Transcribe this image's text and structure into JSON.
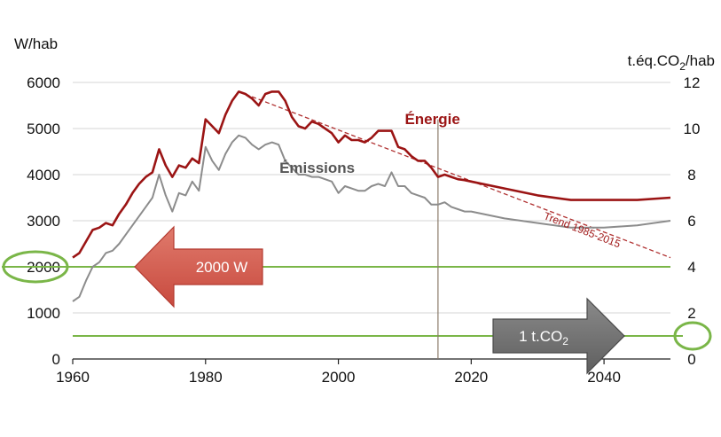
{
  "chart_data": {
    "type": "line",
    "left_axis": {
      "label": "W/hab",
      "ylim": [
        0,
        6000
      ],
      "ticks": [
        0,
        1000,
        2000,
        3000,
        4000,
        5000,
        6000
      ]
    },
    "right_axis": {
      "label": "t.éq.CO",
      "label_sub": "2",
      "label_suffix": "/hab",
      "ylim": [
        0,
        12
      ],
      "ticks": [
        0,
        2,
        4,
        6,
        8,
        10,
        12
      ]
    },
    "x_axis": {
      "xlim": [
        1960,
        2050
      ],
      "ticks": [
        1960,
        1980,
        2000,
        2020,
        2040
      ]
    },
    "grid": "horizontal",
    "series": [
      {
        "name": "Énergie",
        "axis": "left",
        "color": "#9b1414",
        "x": [
          1960,
          1961,
          1962,
          1963,
          1964,
          1965,
          1966,
          1967,
          1968,
          1969,
          1970,
          1971,
          1972,
          1973,
          1974,
          1975,
          1976,
          1977,
          1978,
          1979,
          1980,
          1981,
          1982,
          1983,
          1984,
          1985,
          1986,
          1987,
          1988,
          1989,
          1990,
          1991,
          1992,
          1993,
          1994,
          1995,
          1996,
          1997,
          1998,
          1999,
          2000,
          2001,
          2002,
          2003,
          2004,
          2005,
          2006,
          2007,
          2008,
          2009,
          2010,
          2011,
          2012,
          2013,
          2014,
          2015,
          2016,
          2017,
          2018,
          2019,
          2020,
          2025,
          2030,
          2035,
          2040,
          2045,
          2050
        ],
        "y": [
          2200,
          2300,
          2550,
          2800,
          2850,
          2950,
          2900,
          3150,
          3350,
          3600,
          3800,
          3950,
          4050,
          4550,
          4200,
          3950,
          4200,
          4150,
          4350,
          4250,
          5200,
          5050,
          4900,
          5300,
          5600,
          5800,
          5750,
          5650,
          5500,
          5750,
          5800,
          5800,
          5600,
          5250,
          5050,
          5000,
          5150,
          5100,
          5000,
          4900,
          4700,
          4850,
          4750,
          4750,
          4700,
          4800,
          4950,
          4950,
          4950,
          4600,
          4550,
          4400,
          4300,
          4300,
          4150,
          3950,
          4000,
          3950,
          3900,
          3880,
          3850,
          3700,
          3550,
          3450,
          3450,
          3450,
          3500
        ]
      },
      {
        "name": "Émissions",
        "axis": "right",
        "color": "#8c8c8c",
        "x": [
          1960,
          1961,
          1962,
          1963,
          1964,
          1965,
          1966,
          1967,
          1968,
          1969,
          1970,
          1971,
          1972,
          1973,
          1974,
          1975,
          1976,
          1977,
          1978,
          1979,
          1980,
          1981,
          1982,
          1983,
          1984,
          1985,
          1986,
          1987,
          1988,
          1989,
          1990,
          1991,
          1992,
          1993,
          1994,
          1995,
          1996,
          1997,
          1998,
          1999,
          2000,
          2001,
          2002,
          2003,
          2004,
          2005,
          2006,
          2007,
          2008,
          2009,
          2010,
          2011,
          2012,
          2013,
          2014,
          2015,
          2016,
          2017,
          2018,
          2019,
          2020,
          2025,
          2030,
          2035,
          2040,
          2045,
          2050
        ],
        "y": [
          2.5,
          2.7,
          3.4,
          4.0,
          4.2,
          4.6,
          4.7,
          5.0,
          5.4,
          5.8,
          6.2,
          6.6,
          7.0,
          8.0,
          7.1,
          6.4,
          7.2,
          7.1,
          7.7,
          7.3,
          9.2,
          8.6,
          8.2,
          8.9,
          9.4,
          9.7,
          9.6,
          9.3,
          9.1,
          9.3,
          9.4,
          9.3,
          8.6,
          8.3,
          8.0,
          8.0,
          7.9,
          7.9,
          7.8,
          7.7,
          7.2,
          7.5,
          7.4,
          7.3,
          7.3,
          7.5,
          7.6,
          7.5,
          8.1,
          7.5,
          7.5,
          7.2,
          7.1,
          7.0,
          6.7,
          6.7,
          6.8,
          6.6,
          6.5,
          6.4,
          6.4,
          6.1,
          5.9,
          5.7,
          5.7,
          5.8,
          6.0
        ]
      }
    ],
    "trend": {
      "label": "Trend 1985-2015",
      "color": "#b03030",
      "x": [
        1985,
        2050
      ],
      "y": [
        5800,
        2200
      ]
    },
    "annotations": {
      "energy_label": "Énergie",
      "emissions_label": "Émissions",
      "energy_label_at": {
        "x": 2010,
        "y": 5100
      },
      "emissions_label_at": {
        "x": 1997,
        "y": 8.0
      },
      "vline_year": 2015,
      "target_energy": {
        "value": 2000,
        "axis": "left",
        "color": "#7ab648",
        "text": "2000 W",
        "circled_tick": "2000"
      },
      "target_co2": {
        "value": 1,
        "axis": "right",
        "color": "#7ab648",
        "text": "1 t.CO",
        "text_sub": "2",
        "circled_tick": "1"
      }
    }
  }
}
